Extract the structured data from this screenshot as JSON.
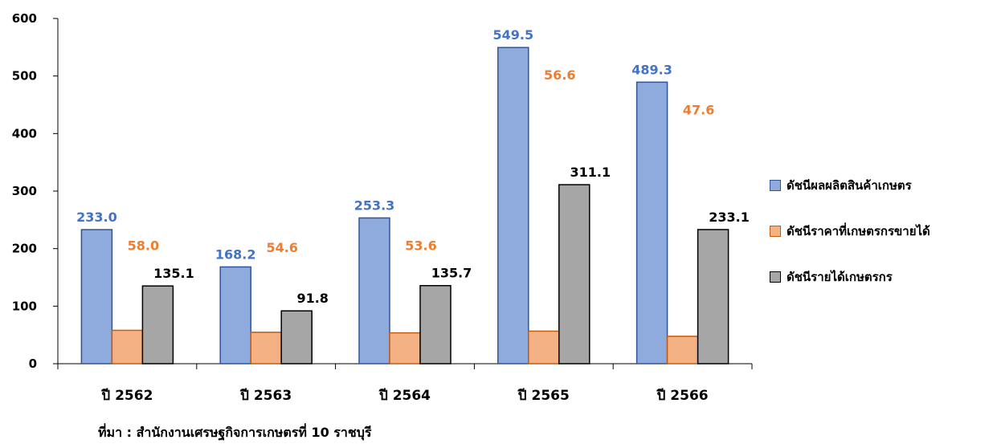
{
  "chart_data": {
    "type": "bar",
    "categories": [
      "ปี 2562",
      "ปี 2563",
      "ปี 2564",
      "ปี 2565",
      "ปี 2566"
    ],
    "series": [
      {
        "name": "ดัชนีผลผลิตสินค้าเกษตร",
        "values": [
          233.0,
          168.2,
          253.3,
          549.5,
          489.3
        ],
        "labels": [
          "233.0",
          "168.2",
          "253.3",
          "549.5",
          "489.3"
        ],
        "color": "#8faadc",
        "stroke": "#2f5597",
        "label_color": "#4472c4"
      },
      {
        "name": "ดัชนีราคาที่เกษตรกรขายได้",
        "values": [
          58.0,
          54.6,
          53.6,
          56.6,
          47.6
        ],
        "labels": [
          "58.0",
          "54.6",
          "53.6",
          "56.6",
          "47.6"
        ],
        "color": "#f4b183",
        "stroke": "#c55a11",
        "label_color": "#ed7d31"
      },
      {
        "name": "ดัชนีรายได้เกษตรกร",
        "values": [
          135.1,
          91.8,
          135.7,
          311.1,
          233.1
        ],
        "labels": [
          "135.1",
          "91.8",
          "135.7",
          "311.1",
          "233.1"
        ],
        "color": "#a6a6a6",
        "stroke": "#000000",
        "label_color": "#000000"
      }
    ],
    "yticks": [
      0,
      100,
      200,
      300,
      400,
      500,
      600
    ],
    "ylim": [
      0,
      600
    ],
    "grid": false,
    "legend_position": "right"
  },
  "source_note": "ที่มา : สำนักงานเศรษฐกิจการเกษตรที่ 10 ราชบุรี"
}
